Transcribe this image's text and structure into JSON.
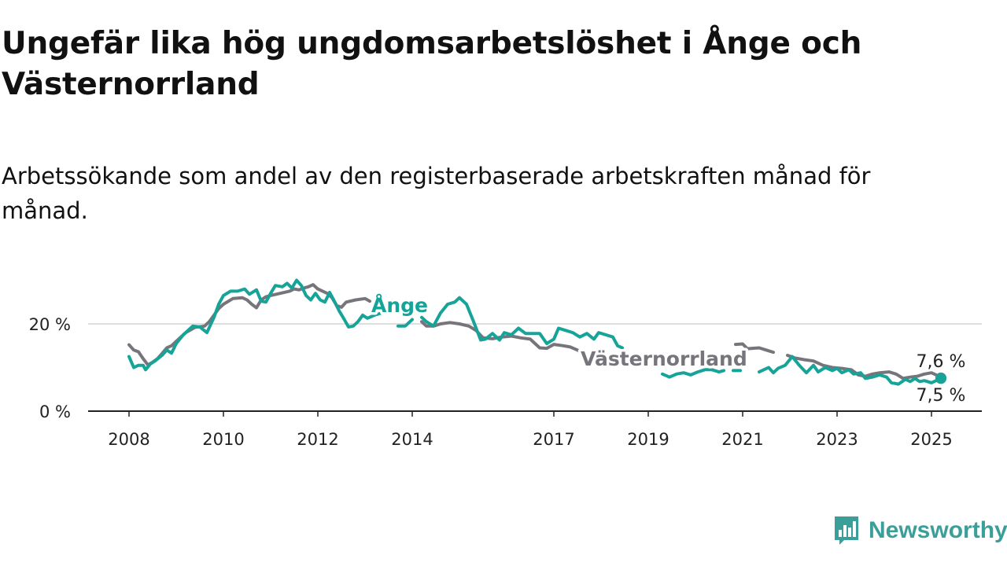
{
  "header": {
    "title": "Ungefär lika hög ungdomsarbetslöshet i Ånge och Västernorrland",
    "subtitle": "Arbetssökande som andel av den registerbaserade arbetskraften månad för månad."
  },
  "brand": {
    "name": "Newsworthy",
    "icon": "bar-chart-logo-icon",
    "color": "#3a9f98"
  },
  "colors": {
    "ange": "#16a398",
    "vasternorrland": "#77757b",
    "grid": "#d4d4d4",
    "axis": "#222222"
  },
  "chart_data": {
    "type": "line",
    "x_unit": "year",
    "xlim": [
      2007.95,
      2025.4
    ],
    "ylim": [
      0,
      30
    ],
    "grid": true,
    "y_ticks": [
      {
        "value": 0,
        "label": "0 %"
      },
      {
        "value": 20,
        "label": "20 %"
      }
    ],
    "x_ticks": [
      {
        "value": 2008,
        "label": "2008"
      },
      {
        "value": 2010,
        "label": "2010"
      },
      {
        "value": 2012,
        "label": "2012"
      },
      {
        "value": 2014,
        "label": "2014"
      },
      {
        "value": 2017,
        "label": "2017"
      },
      {
        "value": 2019,
        "label": "2019"
      },
      {
        "value": 2021,
        "label": "2021"
      },
      {
        "value": 2023,
        "label": "2023"
      },
      {
        "value": 2025,
        "label": "2025"
      }
    ],
    "series": [
      {
        "name": "Västernorrland",
        "color": "#77757b",
        "end_label": "7,6 %",
        "points": [
          [
            2008.0,
            15.2
          ],
          [
            2008.1,
            14.0
          ],
          [
            2008.2,
            13.6
          ],
          [
            2008.3,
            12.0
          ],
          [
            2008.4,
            10.6
          ],
          [
            2008.5,
            11.2
          ],
          [
            2008.6,
            12.0
          ],
          [
            2008.7,
            13.2
          ],
          [
            2008.8,
            14.5
          ],
          [
            2008.9,
            15.0
          ],
          [
            2009.0,
            16.0
          ],
          [
            2009.2,
            18.0
          ],
          [
            2009.4,
            19.2
          ],
          [
            2009.6,
            19.5
          ],
          [
            2009.7,
            20.5
          ],
          [
            2009.8,
            22.0
          ],
          [
            2009.9,
            23.5
          ],
          [
            2010.0,
            24.5
          ],
          [
            2010.2,
            25.8
          ],
          [
            2010.4,
            26.0
          ],
          [
            2010.5,
            25.5
          ],
          [
            2010.6,
            24.5
          ],
          [
            2010.7,
            23.7
          ],
          [
            2010.8,
            25.5
          ],
          [
            2010.9,
            26.2
          ],
          [
            2011.0,
            26.5
          ],
          [
            2011.2,
            27.0
          ],
          [
            2011.4,
            27.5
          ],
          [
            2011.5,
            28.0
          ],
          [
            2011.6,
            27.8
          ],
          [
            2011.7,
            28.2
          ],
          [
            2011.8,
            28.5
          ],
          [
            2011.9,
            29.0
          ],
          [
            2012.0,
            28.0
          ],
          [
            2012.2,
            27.0
          ],
          [
            2012.3,
            26.0
          ],
          [
            2012.4,
            24.2
          ],
          [
            2012.5,
            23.8
          ],
          [
            2012.6,
            25.0
          ],
          [
            2012.8,
            25.5
          ],
          [
            2013.0,
            25.8
          ],
          [
            2013.1,
            25.2
          ],
          null,
          [
            2014.2,
            20.5
          ],
          [
            2014.3,
            19.5
          ],
          [
            2014.45,
            19.5
          ],
          [
            2014.6,
            20.0
          ],
          [
            2014.8,
            20.3
          ],
          [
            2015.0,
            20.0
          ],
          [
            2015.2,
            19.5
          ],
          [
            2015.35,
            18.5
          ],
          [
            2015.5,
            16.8
          ],
          [
            2015.7,
            16.6
          ],
          [
            2015.9,
            17.0
          ],
          [
            2016.1,
            17.2
          ],
          [
            2016.3,
            16.8
          ],
          [
            2016.5,
            16.5
          ],
          [
            2016.7,
            14.5
          ],
          [
            2016.85,
            14.4
          ],
          [
            2017.0,
            15.3
          ],
          [
            2017.2,
            15.0
          ],
          [
            2017.35,
            14.7
          ],
          [
            2017.5,
            14.0
          ],
          [
            2017.65,
            12.8
          ],
          [
            2017.8,
            12.8
          ],
          [
            2017.9,
            13.0
          ],
          null,
          [
            2020.85,
            15.3
          ],
          [
            2021.0,
            15.4
          ],
          [
            2021.1,
            14.3
          ],
          [
            2021.2,
            14.4
          ],
          [
            2021.35,
            14.5
          ],
          [
            2021.5,
            14.0
          ],
          [
            2021.65,
            13.5
          ],
          null,
          [
            2021.95,
            12.8
          ],
          [
            2022.1,
            12.2
          ],
          [
            2022.3,
            11.8
          ],
          [
            2022.5,
            11.5
          ],
          [
            2022.7,
            10.5
          ],
          [
            2022.9,
            10.0
          ],
          [
            2023.1,
            9.8
          ],
          [
            2023.3,
            9.5
          ],
          [
            2023.45,
            8.3
          ],
          [
            2023.6,
            8.0
          ],
          [
            2023.75,
            8.5
          ],
          [
            2023.9,
            8.8
          ],
          [
            2024.1,
            9.0
          ],
          [
            2024.25,
            8.5
          ],
          [
            2024.4,
            7.5
          ],
          [
            2024.55,
            7.8
          ],
          [
            2024.7,
            8.0
          ],
          [
            2024.85,
            8.5
          ],
          [
            2025.0,
            8.8
          ],
          [
            2025.1,
            8.3
          ],
          [
            2025.2,
            7.6
          ]
        ]
      },
      {
        "name": "Ånge",
        "color": "#16a398",
        "end_label": "7,5 %",
        "points": [
          [
            2008.0,
            12.5
          ],
          [
            2008.1,
            10.0
          ],
          [
            2008.2,
            10.5
          ],
          [
            2008.3,
            10.5
          ],
          [
            2008.35,
            9.5
          ],
          [
            2008.45,
            10.8
          ],
          [
            2008.55,
            11.5
          ],
          [
            2008.7,
            12.8
          ],
          [
            2008.8,
            14.0
          ],
          [
            2008.9,
            13.3
          ],
          [
            2009.0,
            15.5
          ],
          [
            2009.15,
            17.5
          ],
          [
            2009.35,
            19.5
          ],
          [
            2009.5,
            19.3
          ],
          [
            2009.65,
            18.0
          ],
          [
            2009.8,
            21.5
          ],
          [
            2009.9,
            24.5
          ],
          [
            2010.0,
            26.5
          ],
          [
            2010.15,
            27.5
          ],
          [
            2010.3,
            27.5
          ],
          [
            2010.45,
            28.0
          ],
          [
            2010.55,
            26.8
          ],
          [
            2010.7,
            27.8
          ],
          [
            2010.8,
            25.2
          ],
          [
            2010.9,
            25.0
          ],
          [
            2011.0,
            27.0
          ],
          [
            2011.1,
            28.8
          ],
          [
            2011.25,
            28.5
          ],
          [
            2011.35,
            29.3
          ],
          [
            2011.45,
            28.2
          ],
          [
            2011.55,
            30.0
          ],
          [
            2011.65,
            28.8
          ],
          [
            2011.75,
            26.5
          ],
          [
            2011.85,
            25.5
          ],
          [
            2011.95,
            27.0
          ],
          [
            2012.05,
            25.5
          ],
          [
            2012.15,
            25.0
          ],
          [
            2012.25,
            27.2
          ],
          [
            2012.35,
            25.2
          ],
          [
            2012.45,
            23.0
          ],
          [
            2012.55,
            21.2
          ],
          [
            2012.65,
            19.3
          ],
          [
            2012.75,
            19.5
          ],
          [
            2012.85,
            20.5
          ],
          [
            2012.95,
            22.0
          ],
          [
            2013.05,
            21.3
          ],
          [
            2013.2,
            22.0
          ],
          [
            2013.35,
            22.5
          ],
          null,
          [
            2013.7,
            19.5
          ],
          [
            2013.85,
            19.5
          ],
          [
            2014.0,
            21.0
          ],
          null,
          [
            2014.2,
            21.5
          ],
          [
            2014.3,
            20.5
          ],
          [
            2014.45,
            19.5
          ],
          [
            2014.6,
            22.5
          ],
          [
            2014.75,
            24.5
          ],
          [
            2014.9,
            25.0
          ],
          [
            2015.0,
            26.0
          ],
          [
            2015.15,
            24.5
          ],
          [
            2015.3,
            20.5
          ],
          [
            2015.45,
            16.3
          ],
          [
            2015.55,
            16.5
          ],
          [
            2015.7,
            17.8
          ],
          [
            2015.85,
            16.3
          ],
          [
            2015.95,
            18.0
          ],
          [
            2016.1,
            17.5
          ],
          [
            2016.25,
            19.0
          ],
          [
            2016.4,
            17.8
          ],
          [
            2016.55,
            17.8
          ],
          [
            2016.7,
            17.8
          ],
          [
            2016.85,
            15.5
          ],
          [
            2017.0,
            16.5
          ],
          [
            2017.1,
            19.0
          ],
          [
            2017.25,
            18.5
          ],
          [
            2017.4,
            18.0
          ],
          [
            2017.55,
            17.0
          ],
          [
            2017.7,
            17.8
          ],
          [
            2017.85,
            16.5
          ],
          [
            2017.95,
            18.0
          ],
          [
            2018.1,
            17.5
          ],
          [
            2018.25,
            17.0
          ],
          [
            2018.35,
            15.0
          ],
          [
            2018.45,
            14.5
          ],
          null,
          [
            2019.3,
            8.5
          ],
          [
            2019.45,
            7.8
          ],
          [
            2019.6,
            8.5
          ],
          [
            2019.75,
            8.8
          ],
          [
            2019.9,
            8.3
          ],
          [
            2020.05,
            9.0
          ],
          [
            2020.2,
            9.5
          ],
          [
            2020.35,
            9.5
          ],
          [
            2020.5,
            9.0
          ],
          [
            2020.6,
            9.3
          ],
          null,
          [
            2020.8,
            9.3
          ],
          [
            2020.95,
            9.3
          ],
          null,
          [
            2021.35,
            9.0
          ],
          [
            2021.45,
            9.5
          ],
          [
            2021.55,
            10.0
          ],
          [
            2021.65,
            8.8
          ],
          [
            2021.75,
            9.8
          ],
          [
            2021.9,
            10.5
          ],
          [
            2022.05,
            12.5
          ],
          [
            2022.2,
            10.5
          ],
          [
            2022.35,
            8.8
          ],
          [
            2022.5,
            10.5
          ],
          [
            2022.6,
            9.0
          ],
          [
            2022.75,
            10.0
          ],
          [
            2022.9,
            9.3
          ],
          [
            2023.0,
            9.8
          ],
          [
            2023.1,
            8.8
          ],
          [
            2023.25,
            9.5
          ],
          [
            2023.35,
            8.5
          ],
          [
            2023.5,
            8.8
          ],
          [
            2023.6,
            7.5
          ],
          [
            2023.75,
            7.8
          ],
          [
            2023.9,
            8.3
          ],
          [
            2024.05,
            7.8
          ],
          [
            2024.15,
            6.5
          ],
          [
            2024.3,
            6.2
          ],
          [
            2024.45,
            7.3
          ],
          [
            2024.55,
            6.8
          ],
          [
            2024.65,
            7.5
          ],
          [
            2024.75,
            6.8
          ],
          [
            2024.85,
            7.0
          ],
          [
            2025.0,
            6.5
          ],
          [
            2025.1,
            7.0
          ],
          [
            2025.2,
            7.5
          ]
        ]
      }
    ]
  }
}
